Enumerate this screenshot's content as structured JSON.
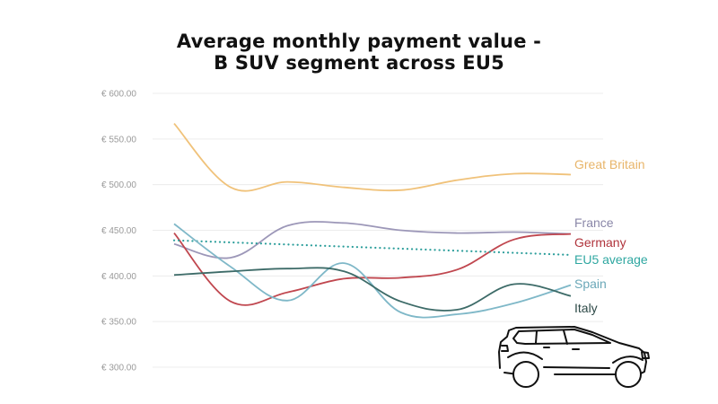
{
  "title": {
    "line1": "Average monthly payment value -",
    "line2": "B SUV segment across EU5"
  },
  "chart_data": {
    "type": "line",
    "title": "Average monthly payment value - B SUV segment across EU5",
    "xlabel": "",
    "ylabel": "",
    "ylim": [
      300,
      600
    ],
    "yticks": [
      "€ 600.00",
      "€ 550.00",
      "€ 500.00",
      "€ 450.00",
      "€ 400.00",
      "€ 350.00",
      "€ 300.00"
    ],
    "grid": true,
    "legend_position": "right (inline labels)",
    "x": [
      1,
      2,
      3,
      4,
      5,
      6,
      7,
      8
    ],
    "series": [
      {
        "name": "Great Britain",
        "color": "#f0c27a",
        "style": "solid",
        "values": [
          567,
          497,
          503,
          497,
          494,
          505,
          512,
          511
        ]
      },
      {
        "name": "France",
        "color": "#9c97b8",
        "style": "solid",
        "values": [
          435,
          420,
          455,
          458,
          450,
          447,
          448,
          446
        ]
      },
      {
        "name": "Germany",
        "color": "#c0474f",
        "style": "solid",
        "values": [
          447,
          372,
          382,
          397,
          398,
          407,
          440,
          446
        ]
      },
      {
        "name": "EU5 average",
        "color": "#2a9d9a",
        "style": "dotted",
        "values": [
          439,
          437,
          435,
          433,
          430,
          428,
          426,
          423
        ]
      },
      {
        "name": "Spain",
        "color": "#7fb8c8",
        "style": "solid",
        "values": [
          457,
          410,
          373,
          414,
          360,
          358,
          370,
          390
        ]
      },
      {
        "name": "Italy",
        "color": "#3d6b68",
        "style": "solid",
        "values": [
          401,
          405,
          408,
          405,
          372,
          363,
          391,
          378
        ]
      }
    ]
  },
  "legend": {
    "great_britain": "Great Britain",
    "france": "France",
    "germany": "Germany",
    "eu5_average": "EU5 average",
    "spain": "Spain",
    "italy": "Italy"
  },
  "illustration": {
    "icon": "suv-car-outline-icon"
  }
}
